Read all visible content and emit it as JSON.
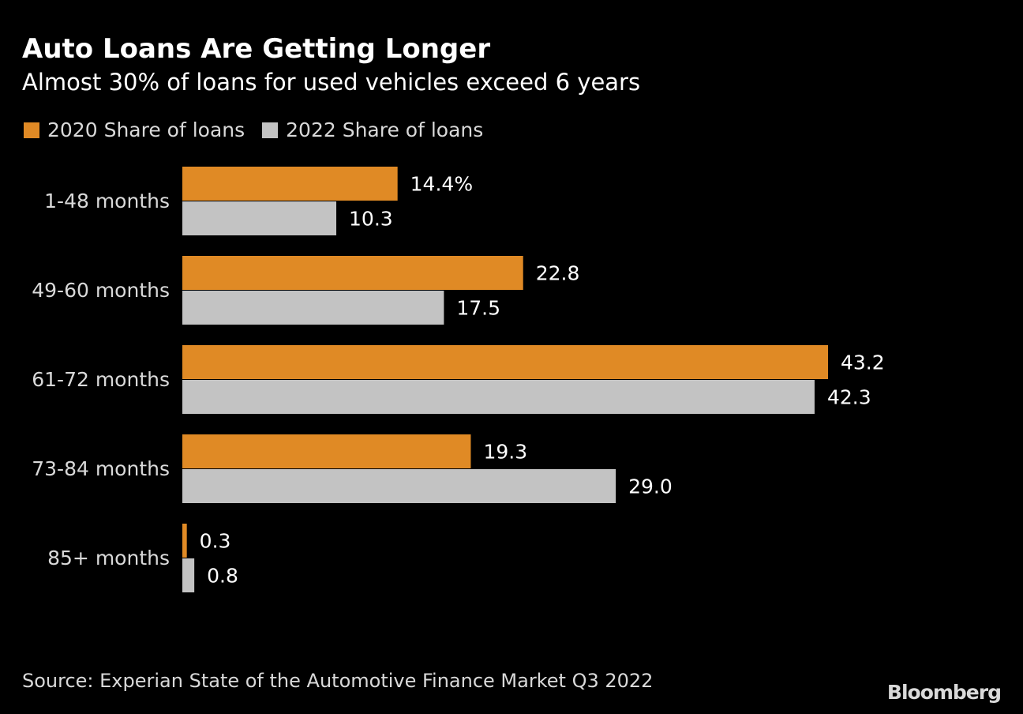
{
  "header": {
    "title": "Auto Loans Are Getting Longer",
    "subtitle": "Almost 30% of loans for used vehicles exceed 6 years"
  },
  "footer": {
    "source": "Source: Experian State of the Automotive Finance Market Q3 2022",
    "brand": "Bloomberg"
  },
  "colors": {
    "background": "#000000",
    "series_2020": "#e08a25",
    "series_2022": "#c3c3c3",
    "text": "#ffffff",
    "muted_text": "#d9d9d9"
  },
  "chart_data": {
    "type": "bar",
    "orientation": "horizontal",
    "title": "Auto Loans Are Getting Longer",
    "subtitle": "Almost 30% of loans for used vehicles exceed 6 years",
    "categories": [
      "1-48 months",
      "49-60 months",
      "61-72 months",
      "73-84 months",
      "85+ months"
    ],
    "series": [
      {
        "name": "2020 Share of loans",
        "values": [
          14.4,
          22.8,
          43.2,
          19.3,
          0.3
        ],
        "labels": [
          "14.4%",
          "22.8",
          "43.2",
          "19.3",
          "0.3"
        ],
        "color": "#e08a25"
      },
      {
        "name": "2022 Share of loans",
        "values": [
          10.3,
          17.5,
          42.3,
          29.0,
          0.8
        ],
        "labels": [
          "10.3",
          "17.5",
          "42.3",
          "29.0",
          "0.8"
        ],
        "color": "#c3c3c3"
      }
    ],
    "xlim": [
      0,
      43.2
    ],
    "grid": false,
    "legend_position": "top-left"
  }
}
